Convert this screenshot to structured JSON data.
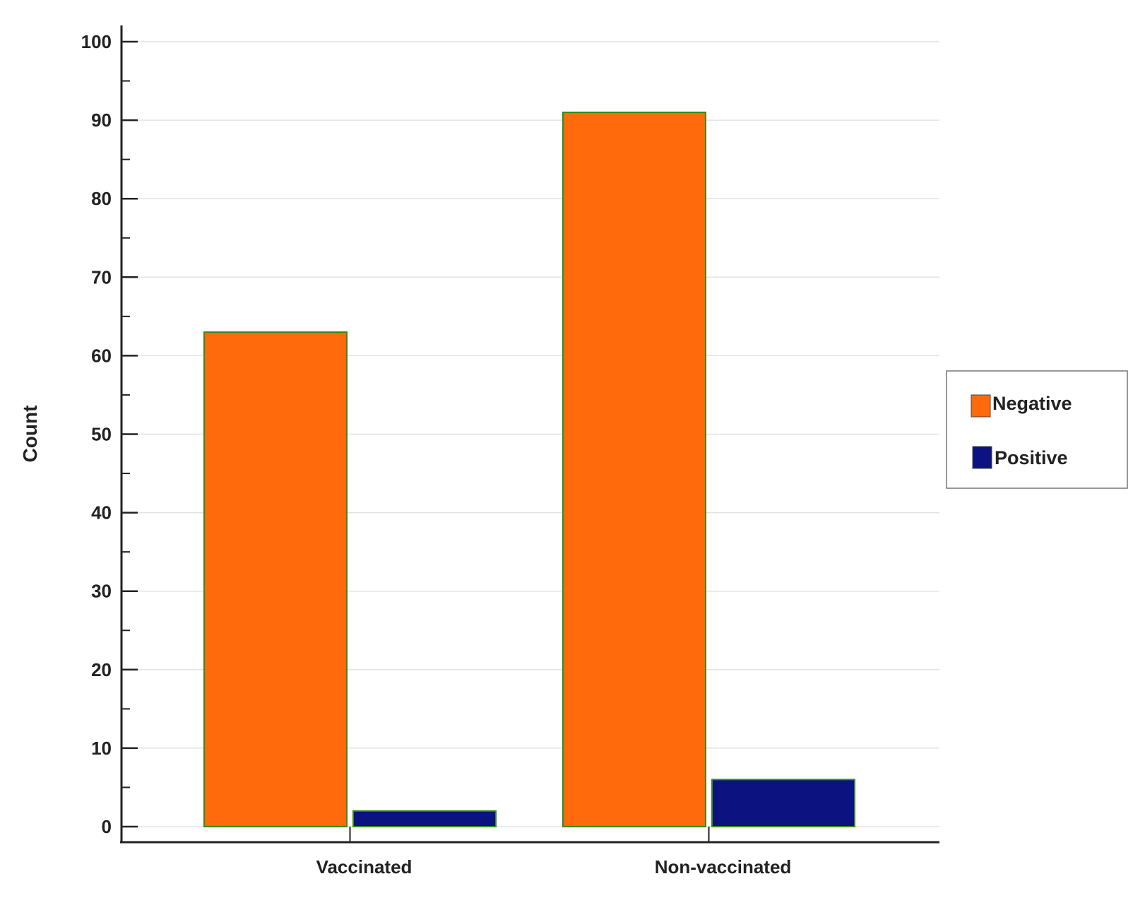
{
  "chart_data": {
    "type": "bar",
    "title": "",
    "xlabel": "",
    "ylabel": "Count",
    "categories": [
      "Vaccinated",
      "Non-vaccinated"
    ],
    "series": [
      {
        "name": "Negative",
        "values": [
          63,
          91
        ],
        "color": "#ff6a0d"
      },
      {
        "name": "Positive",
        "values": [
          2,
          6
        ],
        "color": "#0c1280"
      }
    ],
    "ylim": [
      0,
      100
    ],
    "yticks": [
      0,
      10,
      20,
      30,
      40,
      50,
      60,
      70,
      80,
      90,
      100
    ],
    "grid": true,
    "legend_position": "right",
    "bar_edge_color": "#3a8a1a"
  }
}
